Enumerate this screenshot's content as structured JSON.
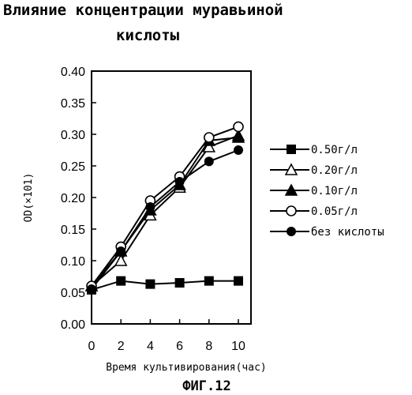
{
  "title_lines": [
    "Влияние концентрации муравьиной",
    "кислоты"
  ],
  "figure_caption": "ФИГ.12",
  "chart_data": {
    "type": "line",
    "title": "Влияние концентрации муравьиной кислоты",
    "xlabel": "Время культивирования(час)",
    "ylabel": "OD(×101)",
    "x": [
      0,
      2,
      4,
      6,
      8,
      10
    ],
    "xticks": [
      "0",
      "2",
      "4",
      "6",
      "8",
      "10"
    ],
    "yticks": [
      "0.00",
      "0.05",
      "0.10",
      "0.15",
      "0.20",
      "0.25",
      "0.30",
      "0.35",
      "0.40"
    ],
    "xlim": [
      0,
      10
    ],
    "ylim": [
      0,
      0.4
    ],
    "grid": false,
    "legend_position": "right",
    "series": [
      {
        "name": "0.50г/л",
        "marker": "filled-square",
        "values": [
          0.054,
          0.068,
          0.063,
          0.065,
          0.068,
          0.068
        ]
      },
      {
        "name": "0.20г/л",
        "marker": "open-triangle",
        "values": [
          0.06,
          0.1,
          0.172,
          0.216,
          0.28,
          0.298
        ]
      },
      {
        "name": "0.10г/л",
        "marker": "filled-triangle",
        "values": [
          0.06,
          0.115,
          0.18,
          0.22,
          0.29,
          0.295
        ]
      },
      {
        "name": "0.05г/л",
        "marker": "open-circle",
        "values": [
          0.06,
          0.122,
          0.195,
          0.233,
          0.295,
          0.312
        ]
      },
      {
        "name": "без кислоты",
        "marker": "filled-circle",
        "values": [
          0.055,
          0.115,
          0.185,
          0.225,
          0.257,
          0.275
        ]
      }
    ]
  }
}
